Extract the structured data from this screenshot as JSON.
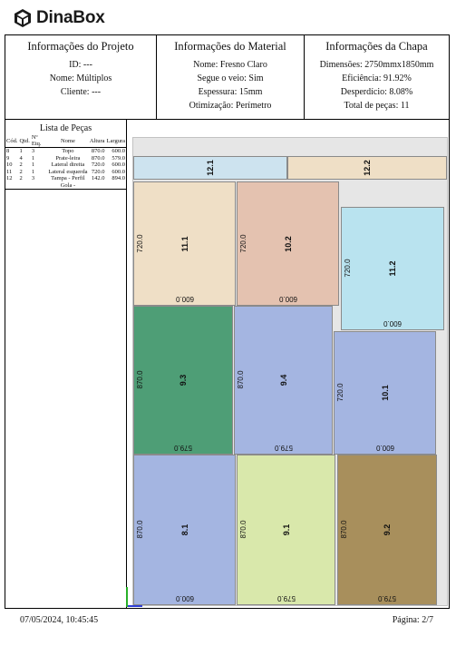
{
  "brand": {
    "name": "DinaBox",
    "logo_icon": "cube-logo-icon"
  },
  "project": {
    "title": "Informações do Projeto",
    "id": "ID: ---",
    "name": "Nome: Múltiplos",
    "client": "Cliente: ---"
  },
  "material": {
    "title": "Informações do Material",
    "name": "Nome: Fresno Claro",
    "grain": "Segue o veio: Sim",
    "thickness": "Espessura: 15mm",
    "optimization": "Otimização: Perímetro"
  },
  "sheet": {
    "title": "Informações da Chapa",
    "dimensions": "Dimensões: 2750mmx1850mm",
    "efficiency": "Eficiência: 91.92%",
    "waste": "Desperdício: 8.08%",
    "total": "Total de peças: 11"
  },
  "parts_list": {
    "title": "Lista de Peças",
    "headers": [
      "Cód.",
      "Qtd.",
      "Nº Etq.",
      "Nome",
      "Altura",
      "Largura"
    ],
    "rows": [
      [
        "8",
        "1",
        "3",
        "Topo",
        "870.0",
        "600.0"
      ],
      [
        "9",
        "4",
        "1",
        "Prate-leira",
        "870.0",
        "579.0"
      ],
      [
        "10",
        "2",
        "1",
        "Lateral direita",
        "720.0",
        "600.0"
      ],
      [
        "11",
        "2",
        "1",
        "Lateral esquerda",
        "720.0",
        "600.0"
      ],
      [
        "12",
        "2",
        "3",
        "Tampa - Perfil Gola -",
        "142.0",
        "894.0"
      ]
    ]
  },
  "pieces": [
    {
      "id": "12.1",
      "color": "#cde3ef",
      "h": "",
      "w": ""
    },
    {
      "id": "12.2",
      "color": "#efdfc6",
      "h": "",
      "w": ""
    },
    {
      "id": "11.1",
      "color": "#efdfc6",
      "h": "720.0",
      "w": "600.0"
    },
    {
      "id": "10.2",
      "color": "#e4c2b0",
      "h": "720.0",
      "w": "600.0"
    },
    {
      "id": "11.2",
      "color": "#b9e3ef",
      "h": "720.0",
      "w": "600.0"
    },
    {
      "id": "9.3",
      "color": "#4e9e76",
      "h": "870.0",
      "w": "579.0"
    },
    {
      "id": "9.4",
      "color": "#a4b5e1",
      "h": "870.0",
      "w": "579.0"
    },
    {
      "id": "10.1",
      "color": "#a4b5e1",
      "h": "720.0",
      "w": "600.0"
    },
    {
      "id": "8.1",
      "color": "#a4b5e1",
      "h": "870.0",
      "w": "600.0"
    },
    {
      "id": "9.1",
      "color": "#d9e8ab",
      "h": "870.0",
      "w": "579.0"
    },
    {
      "id": "9.2",
      "color": "#a88f5c",
      "h": "870.0",
      "w": "579.0"
    }
  ],
  "footer": {
    "date": "07/05/2024, 10:45:45",
    "page": "Página: 2/7"
  }
}
